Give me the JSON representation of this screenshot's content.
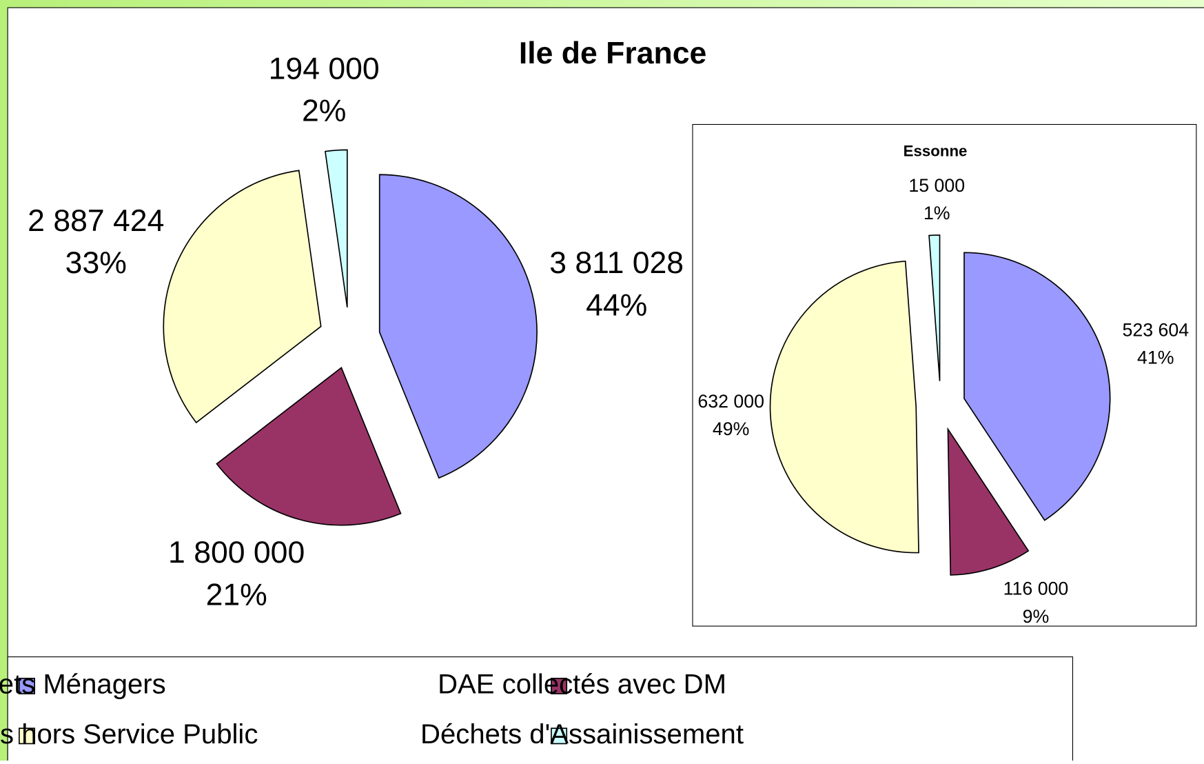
{
  "chart_data": [
    {
      "type": "pie",
      "title": "Ile de France",
      "categories": [
        "Déchets Ménagers",
        "DAE collectés avec DM",
        "DAE collectés hors Service Public",
        "Déchets d'Assainissement"
      ],
      "colors": [
        "#9999ff",
        "#993366",
        "#ffffcc",
        "#ccffff"
      ],
      "values": [
        3811028,
        1800000,
        2887424,
        194000
      ],
      "value_labels": [
        "3 811 028",
        "1 800 000",
        "2 887 424",
        "194 000"
      ],
      "percent_labels": [
        "44%",
        "21%",
        "33%",
        "2%"
      ],
      "legend": "bottom"
    },
    {
      "type": "pie",
      "title": "Essonne",
      "values": [
        523604,
        116000,
        632000,
        15000
      ],
      "value_labels": [
        "523 604",
        "116 000",
        "632 000",
        "15 000"
      ],
      "percent_labels": [
        "41%",
        "9%",
        "49%",
        "1%"
      ]
    }
  ]
}
